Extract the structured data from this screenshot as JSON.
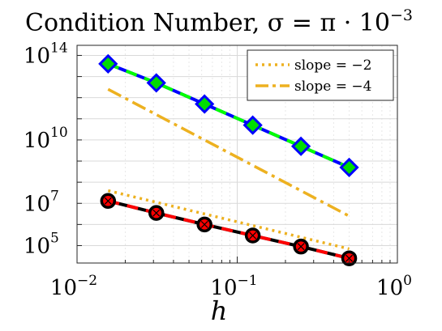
{
  "chart_data": {
    "type": "line",
    "title": "Condition Number, σ = π · 10",
    "title_exponent": "−3",
    "xlabel": "h",
    "ylabel": "",
    "xscale": "log",
    "yscale": "log",
    "xlim": [
      0.01,
      1
    ],
    "ylim": [
      15000,
      300000000000000
    ],
    "grid": true,
    "legend_position": "top-right",
    "x_ticks": [
      {
        "base": "10",
        "exp": "−2"
      },
      {
        "base": "10",
        "exp": "−1"
      },
      {
        "base": "10",
        "exp": "0"
      }
    ],
    "y_ticks": [
      {
        "value": 100000,
        "base": "10",
        "exp": "5"
      },
      {
        "value": 10000000,
        "base": "10",
        "exp": "7"
      },
      {
        "value": 10000000000,
        "base": "10",
        "exp": "10"
      },
      {
        "value": 100000000000000,
        "base": "10",
        "exp": "14"
      }
    ],
    "x_tick_values": [
      0.01,
      0.1,
      1
    ],
    "legend": [
      {
        "label": "slope = −2",
        "color": "#EDB120",
        "style": "dotted"
      },
      {
        "label": "slope = −4",
        "color": "#EDB120",
        "style": "dashdot"
      }
    ],
    "series": [
      {
        "key": "upper",
        "marker": "diamond",
        "line_colors": [
          "#0000FF",
          "#00FF00"
        ],
        "marker_fill": "#00DD00",
        "marker_edge": "#0000FF",
        "x": [
          0.015625,
          0.03125,
          0.0625,
          0.125,
          0.25,
          0.5
        ],
        "y": [
          40000000000000,
          5000000000000,
          500000000000,
          50000000000,
          5000000000,
          500000000
        ]
      },
      {
        "key": "lower",
        "marker": "circle",
        "line_colors": [
          "#000000",
          "#FF0000"
        ],
        "marker_fill": "#FF0000",
        "marker_edge": "#000000",
        "x": [
          0.015625,
          0.03125,
          0.0625,
          0.125,
          0.25,
          0.5
        ],
        "y": [
          13000000,
          3500000,
          1000000,
          300000,
          90000,
          25000
        ]
      },
      {
        "key": "ref-slope-2",
        "style": "dotted",
        "color": "#EDB120",
        "x": [
          0.015625,
          0.5
        ],
        "y": [
          40000000,
          70000
        ]
      },
      {
        "key": "ref-slope-4",
        "style": "dashdot",
        "color": "#EDB120",
        "x": [
          0.015625,
          0.5
        ],
        "y": [
          2500000000000,
          2500000
        ]
      }
    ]
  }
}
